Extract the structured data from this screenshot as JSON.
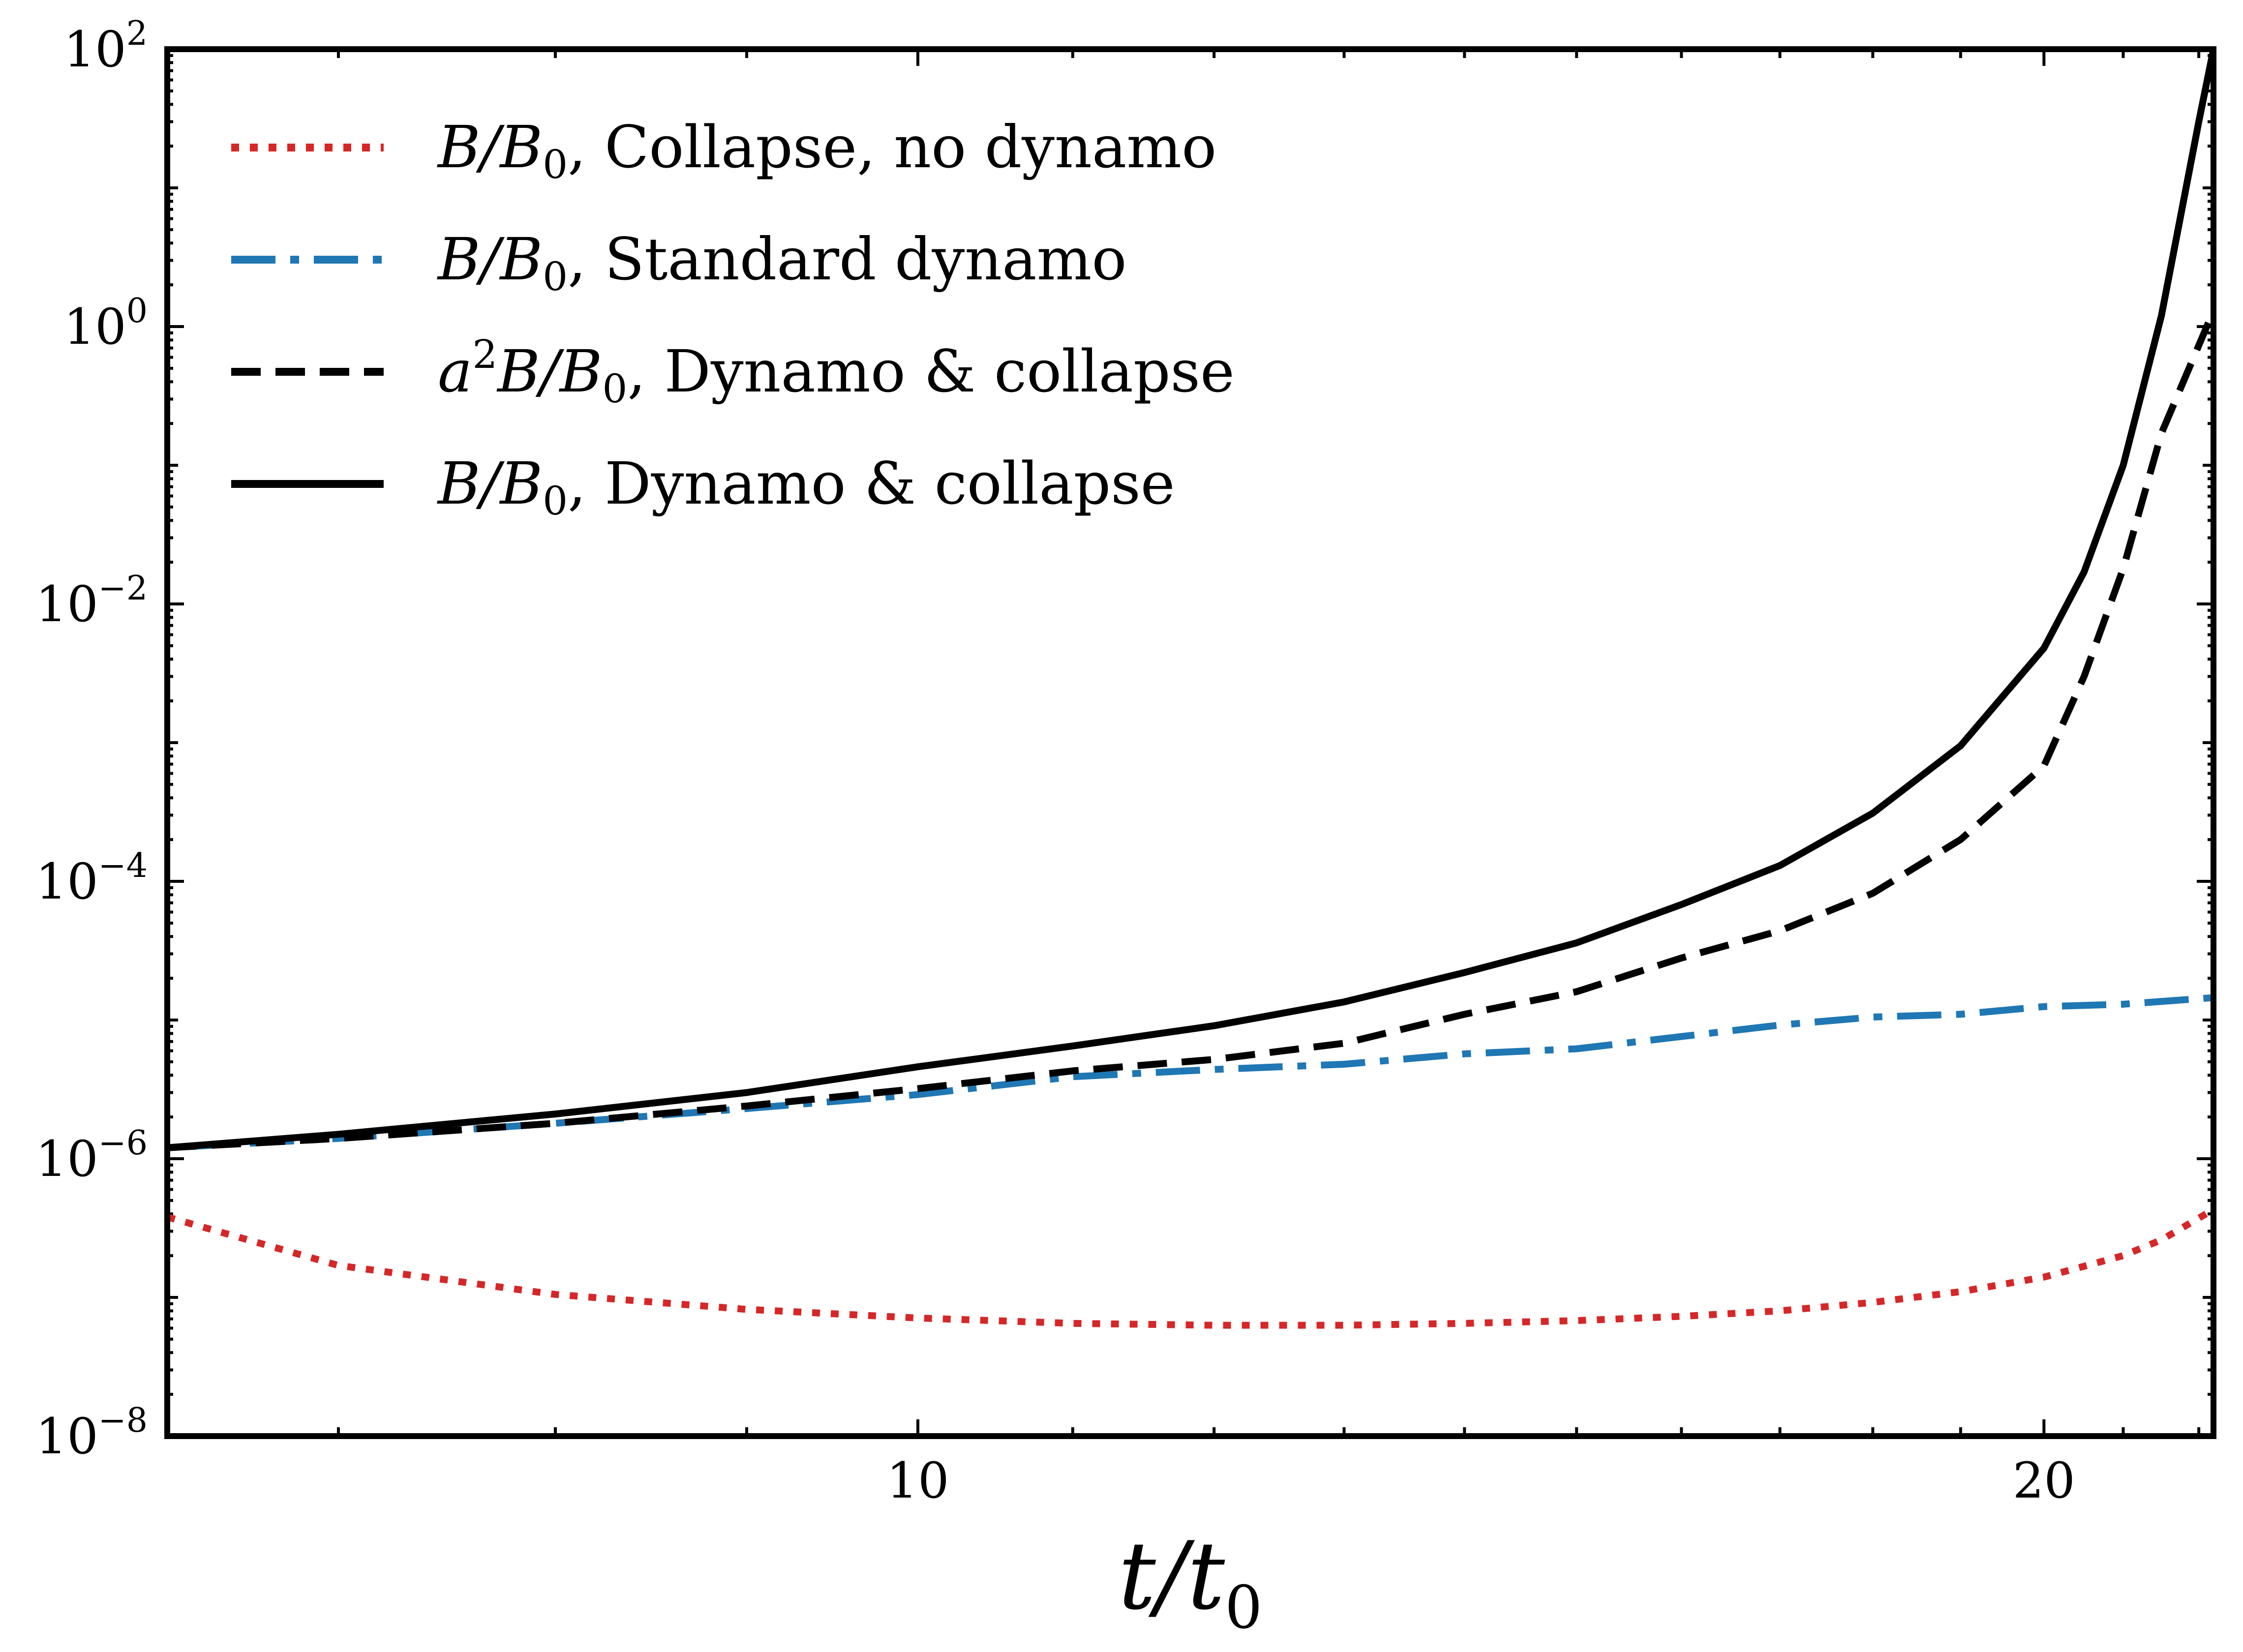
{
  "chart_data": {
    "type": "line",
    "title": "",
    "xlabel": "t/t_0",
    "ylabel": "",
    "xscale": "log",
    "yscale": "log",
    "xlim": [
      6.3,
      22.2
    ],
    "ylim": [
      1e-08,
      100
    ],
    "x_ticks": [
      10,
      20
    ],
    "x_tick_labels": [
      "10",
      "20"
    ],
    "y_ticks": [
      1e-08,
      1e-06,
      0.0001,
      0.01,
      1,
      100
    ],
    "y_tick_labels": [
      {
        "base": "10",
        "exp": "−8"
      },
      {
        "base": "10",
        "exp": "−6"
      },
      {
        "base": "10",
        "exp": "−4"
      },
      {
        "base": "10",
        "exp": "−2"
      },
      {
        "base": "10",
        "exp": "0"
      },
      {
        "base": "10",
        "exp": "2"
      }
    ],
    "legend_position": "top-left",
    "series": [
      {
        "name": "B/B_0, Collapse, no dynamo",
        "color": "#d62728",
        "style": "dotted",
        "x": [
          6.3,
          7.0,
          8.0,
          9.0,
          10.0,
          11.0,
          12.0,
          13.0,
          14.0,
          15.0,
          16.0,
          17.0,
          18.0,
          19.0,
          20.0,
          21.0,
          21.5,
          22.2
        ],
        "y": [
          3.8e-07,
          1.7e-07,
          1.05e-07,
          8.2e-08,
          7.1e-08,
          6.5e-08,
          6.3e-08,
          6.3e-08,
          6.5e-08,
          6.8e-08,
          7.3e-08,
          8e-08,
          9.2e-08,
          1.1e-07,
          1.4e-07,
          2e-07,
          2.6e-07,
          4.3e-07
        ]
      },
      {
        "name": "B/B_0, Standard dynamo",
        "color": "#1f77b4",
        "style": "dashdot",
        "x": [
          6.3,
          7.0,
          8.0,
          9.0,
          10.0,
          11.0,
          12.0,
          13.0,
          14.0,
          15.0,
          16.0,
          17.0,
          18.0,
          19.0,
          20.0,
          21.0,
          22.2
        ],
        "y": [
          1.2e-06,
          1.4e-06,
          1.8e-06,
          2.3e-06,
          2.9e-06,
          3.9e-06,
          4.4e-06,
          4.8e-06,
          5.7e-06,
          6.2e-06,
          7.6e-06,
          9.2e-06,
          1.05e-05,
          1.1e-05,
          1.25e-05,
          1.3e-05,
          1.45e-05
        ]
      },
      {
        "name": "a²B/B_0, Dynamo & collapse",
        "color": "#000000",
        "style": "dashed",
        "x": [
          6.3,
          7.0,
          8.0,
          9.0,
          10.0,
          11.0,
          12.0,
          13.0,
          14.0,
          15.0,
          16.0,
          17.0,
          18.0,
          19.0,
          20.0,
          20.5,
          21.0,
          21.5,
          22.2
        ],
        "y": [
          1.2e-06,
          1.4e-06,
          1.8e-06,
          2.4e-06,
          3.2e-06,
          4.3e-06,
          5.2e-06,
          6.8e-06,
          1.1e-05,
          1.6e-05,
          2.8e-05,
          4.4e-05,
          8.2e-05,
          0.0002,
          0.00068,
          0.003,
          0.018,
          0.17,
          1.3
        ]
      },
      {
        "name": "B/B_0, Dynamo & collapse",
        "color": "#000000",
        "style": "solid",
        "x": [
          6.3,
          7.0,
          8.0,
          9.0,
          10.0,
          11.0,
          12.0,
          13.0,
          14.0,
          15.0,
          16.0,
          17.0,
          18.0,
          19.0,
          20.0,
          20.5,
          21.0,
          21.5,
          22.0,
          22.2
        ],
        "y": [
          1.2e-06,
          1.5e-06,
          2.1e-06,
          3e-06,
          4.6e-06,
          6.5e-06,
          9.1e-06,
          1.35e-05,
          2.2e-05,
          3.6e-05,
          6.8e-05,
          0.00013,
          0.00031,
          0.00095,
          0.0048,
          0.017,
          0.1,
          1.2,
          30,
          100
        ]
      }
    ]
  },
  "legend": {
    "entries": [
      {
        "var": "B/B",
        "sub": "0",
        "suffix": ", Collapse, no dynamo"
      },
      {
        "var": "B/B",
        "sub": "0",
        "suffix": ", Standard dynamo"
      },
      {
        "prefix": "a",
        "sup": "2",
        "var": "B/B",
        "sub": "0",
        "suffix": ", Dynamo & collapse"
      },
      {
        "var": "B/B",
        "sub": "0",
        "suffix": ", Dynamo & collapse"
      }
    ]
  },
  "x_axis_label": {
    "var": "t/t",
    "sub": "0"
  }
}
